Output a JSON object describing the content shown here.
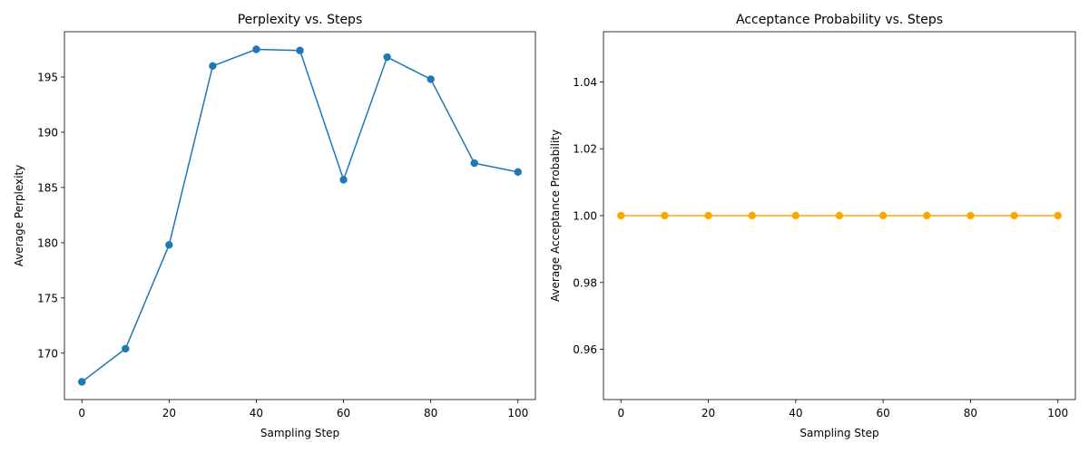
{
  "chart_data": [
    {
      "type": "line",
      "title": "Perplexity vs. Steps",
      "xlabel": "Sampling Step",
      "ylabel": "Average Perplexity",
      "x": [
        0,
        10,
        20,
        30,
        40,
        50,
        60,
        70,
        80,
        90,
        100
      ],
      "series": [
        {
          "values": [
            167.4,
            170.4,
            179.8,
            196.0,
            197.5,
            197.4,
            185.7,
            196.8,
            194.8,
            187.2,
            186.4
          ],
          "color": "#1f77b4",
          "marker": "circle"
        }
      ],
      "xlim": [
        -4,
        104
      ],
      "ylim": [
        165.8,
        199.1
      ],
      "xticks": [
        0,
        20,
        40,
        60,
        80,
        100
      ],
      "yticks": [
        170,
        175,
        180,
        185,
        190,
        195
      ],
      "grid": false
    },
    {
      "type": "line",
      "title": "Acceptance Probability vs. Steps",
      "xlabel": "Sampling Step",
      "ylabel": "Average Acceptance Probability",
      "x": [
        0,
        10,
        20,
        30,
        40,
        50,
        60,
        70,
        80,
        90,
        100
      ],
      "series": [
        {
          "values": [
            1.0,
            1.0,
            1.0,
            1.0,
            1.0,
            1.0,
            1.0,
            1.0,
            1.0,
            1.0,
            1.0
          ],
          "color": "#ffa500",
          "marker": "circle"
        }
      ],
      "xlim": [
        -4,
        104
      ],
      "ylim": [
        0.945,
        1.055
      ],
      "xticks": [
        0,
        20,
        40,
        60,
        80,
        100
      ],
      "yticks": [
        0.96,
        0.98,
        1.0,
        1.02,
        1.04
      ],
      "ytick_labels": [
        "0.96",
        "0.98",
        "1.00",
        "1.02",
        "1.04"
      ],
      "grid": false
    }
  ]
}
